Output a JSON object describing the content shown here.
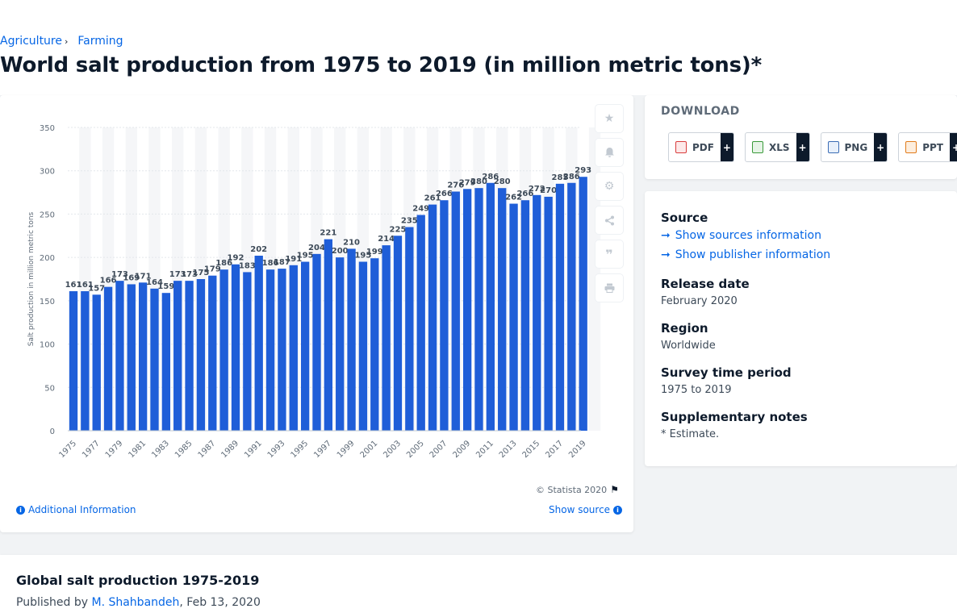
{
  "breadcrumb": {
    "items": [
      "Agriculture",
      "Farming"
    ]
  },
  "page_title": "World salt production from 1975 to 2019 (in million metric tons)*",
  "tools": {
    "icons": [
      "star-icon",
      "bell-icon",
      "gear-icon",
      "share-icon",
      "quote-icon",
      "print-icon"
    ]
  },
  "chart_footer": {
    "copyright": "© Statista 2020",
    "additional_info": "Additional Information",
    "show_source": "Show source"
  },
  "download": {
    "title": "DOWNLOAD",
    "buttons": [
      {
        "label": "PDF",
        "plus": "+"
      },
      {
        "label": "XLS",
        "plus": "+"
      },
      {
        "label": "PNG",
        "plus": "+"
      },
      {
        "label": "PPT",
        "plus": "+"
      }
    ]
  },
  "meta": {
    "source_heading": "Source",
    "show_sources": "Show sources information",
    "show_publisher": "Show publisher information",
    "release_heading": "Release date",
    "release_value": "February 2020",
    "region_heading": "Region",
    "region_value": "Worldwide",
    "survey_heading": "Survey time period",
    "survey_value": "1975 to 2019",
    "notes_heading": "Supplementary notes",
    "notes_value": "* Estimate."
  },
  "bottom": {
    "title": "Global salt production 1975-2019",
    "published_prefix": "Published by",
    "author": "M. Shahbandeh",
    "date": ", Feb 13, 2020"
  },
  "colors": {
    "bar": "#1f5ed8",
    "accent": "#0666e5",
    "band": "#f5f6f8"
  },
  "chart_data": {
    "type": "bar",
    "title": "",
    "xlabel": "",
    "ylabel": "Salt production in million metric tons",
    "ylim": [
      0,
      350
    ],
    "yticks": [
      0,
      50,
      100,
      150,
      200,
      250,
      300,
      350
    ],
    "xticks": [
      "1975",
      "1977",
      "1979",
      "1981",
      "1983",
      "1985",
      "1987",
      "1989",
      "1991",
      "1993",
      "1995",
      "1997",
      "1999",
      "2001",
      "2003",
      "2005",
      "2007",
      "2009",
      "2011",
      "2013",
      "2015",
      "2017",
      "2019"
    ],
    "grid": true,
    "legend": "none",
    "categories": [
      "1975",
      "1976",
      "1977",
      "1978",
      "1979",
      "1980",
      "1981",
      "1982",
      "1983",
      "1984",
      "1985",
      "1986",
      "1987",
      "1988",
      "1989",
      "1990",
      "1991",
      "1992",
      "1993",
      "1994",
      "1995",
      "1996",
      "1997",
      "1998",
      "1999",
      "2000",
      "2001",
      "2002",
      "2003",
      "2004",
      "2005",
      "2006",
      "2007",
      "2008",
      "2009",
      "2010",
      "2011",
      "2012",
      "2013",
      "2014",
      "2015",
      "2016",
      "2017",
      "2018",
      "2019"
    ],
    "values": [
      161,
      161,
      157,
      166,
      173,
      169,
      171,
      164,
      159,
      173,
      173,
      175,
      179,
      186,
      192,
      183,
      202,
      186,
      187,
      191,
      195,
      204,
      221,
      200,
      210,
      195,
      199,
      214,
      225,
      235,
      249,
      261,
      266,
      276,
      279,
      280,
      286,
      280,
      262,
      266,
      272,
      270,
      285,
      286,
      293
    ]
  }
}
